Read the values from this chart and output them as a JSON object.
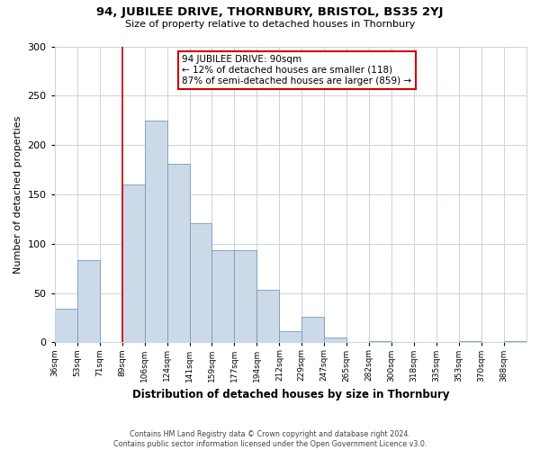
{
  "title": "94, JUBILEE DRIVE, THORNBURY, BRISTOL, BS35 2YJ",
  "subtitle": "Size of property relative to detached houses in Thornbury",
  "xlabel": "Distribution of detached houses by size in Thornbury",
  "ylabel": "Number of detached properties",
  "bar_color": "#ccd9e8",
  "bar_edge_color": "#7799bb",
  "bin_labels": [
    "36sqm",
    "53sqm",
    "71sqm",
    "89sqm",
    "106sqm",
    "124sqm",
    "141sqm",
    "159sqm",
    "177sqm",
    "194sqm",
    "212sqm",
    "229sqm",
    "247sqm",
    "265sqm",
    "282sqm",
    "300sqm",
    "318sqm",
    "335sqm",
    "353sqm",
    "370sqm",
    "388sqm"
  ],
  "bar_heights": [
    34,
    83,
    0,
    160,
    225,
    181,
    121,
    93,
    93,
    53,
    11,
    26,
    5,
    0,
    1,
    0,
    0,
    0,
    1,
    0,
    1
  ],
  "vline_x": 3,
  "vline_color": "#cc0000",
  "annotation_title": "94 JUBILEE DRIVE: 90sqm",
  "annotation_line1": "← 12% of detached houses are smaller (118)",
  "annotation_line2": "87% of semi-detached houses are larger (859) →",
  "annotation_box_color": "#ffffff",
  "annotation_box_edge": "#cc0000",
  "ylim": [
    0,
    300
  ],
  "yticks": [
    0,
    50,
    100,
    150,
    200,
    250,
    300
  ],
  "footnote1": "Contains HM Land Registry data © Crown copyright and database right 2024.",
  "footnote2": "Contains public sector information licensed under the Open Government Licence v3.0.",
  "background_color": "#ffffff",
  "grid_color": "#c8d4e0"
}
